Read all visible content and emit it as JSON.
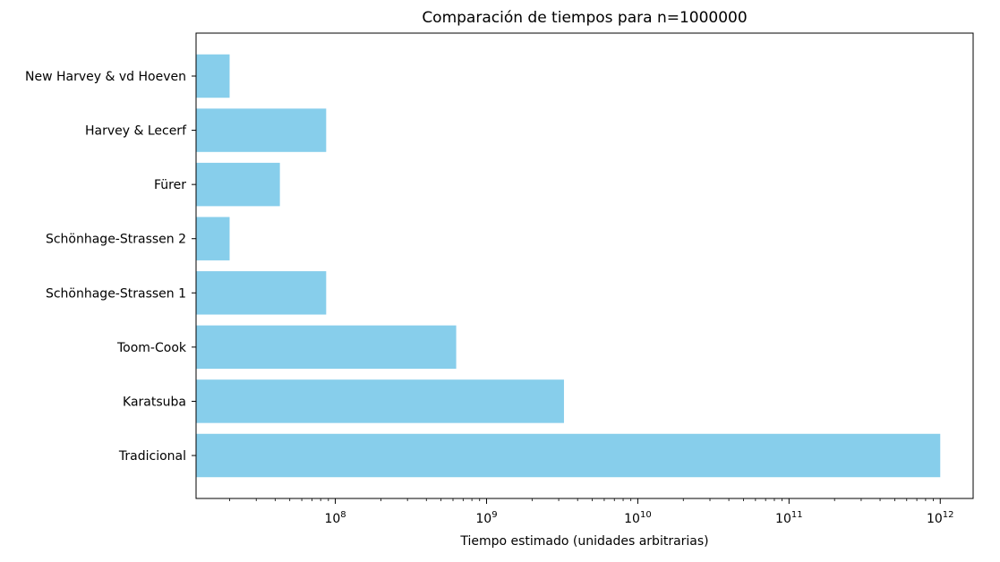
{
  "chart_data": {
    "type": "bar",
    "orientation": "horizontal",
    "title": "Comparación de tiempos para n=1000000",
    "xlabel": "Tiempo estimado (unidades arbitrarias)",
    "ylabel": "",
    "x_scale": "log",
    "xlim": [
      12000000,
      1650000000000
    ],
    "x_ticks": [
      {
        "value": 100000000,
        "base": "10",
        "exp": "8"
      },
      {
        "value": 1000000000,
        "base": "10",
        "exp": "9"
      },
      {
        "value": 10000000000,
        "base": "10",
        "exp": "10"
      },
      {
        "value": 100000000000,
        "base": "10",
        "exp": "11"
      },
      {
        "value": 1000000000000,
        "base": "10",
        "exp": "12"
      }
    ],
    "categories": [
      "Tradicional",
      "Karatsuba",
      "Toom-Cook",
      "Schönhage-Strassen 1",
      "Schönhage-Strassen 2",
      "Fürer",
      "Harvey & Lecerf",
      "New Harvey & vd Hoeven"
    ],
    "values": [
      1000000000000,
      3250000000,
      630000000,
      87000000,
      20000000,
      43000000,
      87000000,
      20000000
    ],
    "bar_color": "#87ceeb",
    "grid": false,
    "legend": "none"
  }
}
